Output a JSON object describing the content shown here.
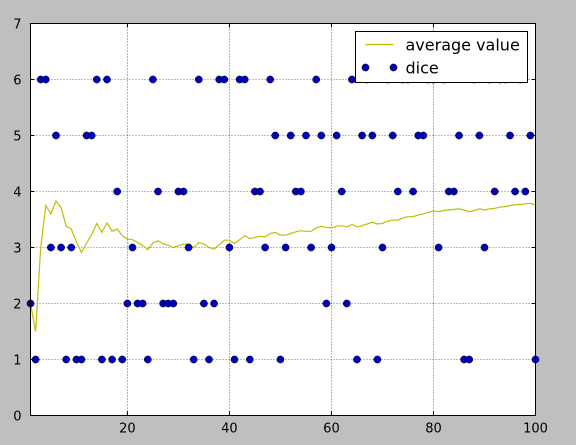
{
  "chart_data": {
    "type": "scatter",
    "title": "",
    "xlabel": "",
    "ylabel": "",
    "xlim": [
      1,
      100
    ],
    "ylim": [
      0,
      7
    ],
    "xticks": [
      20,
      40,
      60,
      80,
      100
    ],
    "yticks": [
      0,
      1,
      2,
      3,
      4,
      5,
      6,
      7
    ],
    "grid": true,
    "legend_position": "top-right",
    "series": [
      {
        "name": "average value",
        "type": "line",
        "color": "#bfbf00",
        "x": [
          1,
          2,
          3,
          4,
          5,
          6,
          7,
          8,
          9,
          10,
          11,
          12,
          13,
          14,
          15,
          16,
          17,
          18,
          19,
          20,
          21,
          22,
          23,
          24,
          25,
          26,
          27,
          28,
          29,
          30,
          31,
          32,
          33,
          34,
          35,
          36,
          37,
          38,
          39,
          40,
          41,
          42,
          43,
          44,
          45,
          46,
          47,
          48,
          49,
          50,
          51,
          52,
          53,
          54,
          55,
          56,
          57,
          58,
          59,
          60,
          61,
          62,
          63,
          64,
          65,
          66,
          67,
          68,
          69,
          70,
          71,
          72,
          73,
          74,
          75,
          76,
          77,
          78,
          79,
          80,
          81,
          82,
          83,
          84,
          85,
          86,
          87,
          88,
          89,
          90,
          91,
          92,
          93,
          94,
          95,
          96,
          97,
          98,
          99,
          100
        ],
        "y": [
          2,
          1.5,
          3,
          3.75,
          3.6,
          3.83,
          3.71,
          3.38,
          3.33,
          3.1,
          2.91,
          3.08,
          3.23,
          3.43,
          3.27,
          3.44,
          3.29,
          3.33,
          3.21,
          3.15,
          3.14,
          3.09,
          3.04,
          2.96,
          3.08,
          3.12,
          3.07,
          3.04,
          3,
          3.03,
          3.06,
          3.06,
          3,
          3.09,
          3.06,
          3,
          2.97,
          3.05,
          3.13,
          3.13,
          3.07,
          3.14,
          3.21,
          3.16,
          3.18,
          3.2,
          3.19,
          3.25,
          3.27,
          3.22,
          3.22,
          3.25,
          3.28,
          3.3,
          3.29,
          3.29,
          3.35,
          3.38,
          3.36,
          3.35,
          3.38,
          3.39,
          3.37,
          3.41,
          3.37,
          3.39,
          3.42,
          3.45,
          3.42,
          3.43,
          3.47,
          3.49,
          3.49,
          3.53,
          3.55,
          3.55,
          3.58,
          3.6,
          3.63,
          3.65,
          3.64,
          3.66,
          3.67,
          3.68,
          3.69,
          3.67,
          3.64,
          3.66,
          3.69,
          3.67,
          3.69,
          3.7,
          3.72,
          3.73,
          3.75,
          3.76,
          3.77,
          3.78,
          3.79,
          3.76
        ]
      },
      {
        "name": "dice",
        "type": "scatter",
        "color": "#0000bf",
        "x": [
          1,
          2,
          3,
          4,
          5,
          6,
          7,
          8,
          9,
          10,
          11,
          12,
          13,
          14,
          15,
          16,
          17,
          18,
          19,
          20,
          21,
          22,
          23,
          24,
          25,
          26,
          27,
          28,
          29,
          30,
          31,
          32,
          33,
          34,
          35,
          36,
          37,
          38,
          39,
          40,
          41,
          42,
          43,
          44,
          45,
          46,
          47,
          48,
          49,
          50,
          51,
          52,
          53,
          54,
          55,
          56,
          57,
          58,
          59,
          60,
          61,
          62,
          63,
          64,
          65,
          66,
          67,
          68,
          69,
          70,
          71,
          72,
          73,
          74,
          75,
          76,
          77,
          78,
          79,
          80,
          81,
          82,
          83,
          84,
          85,
          86,
          87,
          88,
          89,
          90,
          91,
          92,
          93,
          94,
          95,
          96,
          97,
          98,
          99,
          100
        ],
        "y": [
          2,
          1,
          6,
          6,
          3,
          5,
          3,
          1,
          3,
          1,
          1,
          5,
          5,
          6,
          1,
          6,
          1,
          4,
          1,
          2,
          3,
          2,
          2,
          1,
          6,
          4,
          2,
          2,
          2,
          4,
          4,
          3,
          1,
          6,
          2,
          1,
          2,
          6,
          6,
          3,
          1,
          6,
          6,
          1,
          4,
          4,
          3,
          6,
          5,
          1,
          3,
          5,
          4,
          4,
          5,
          3,
          6,
          5,
          2,
          3,
          5,
          4,
          2,
          6,
          1,
          5,
          6,
          5,
          1,
          3,
          6,
          5,
          4,
          6,
          6,
          4,
          5,
          5,
          6,
          6,
          3,
          6,
          4,
          4,
          5,
          1,
          1,
          6,
          5,
          3,
          6,
          4,
          6,
          6,
          5,
          4,
          6,
          4,
          5,
          1
        ]
      }
    ]
  }
}
